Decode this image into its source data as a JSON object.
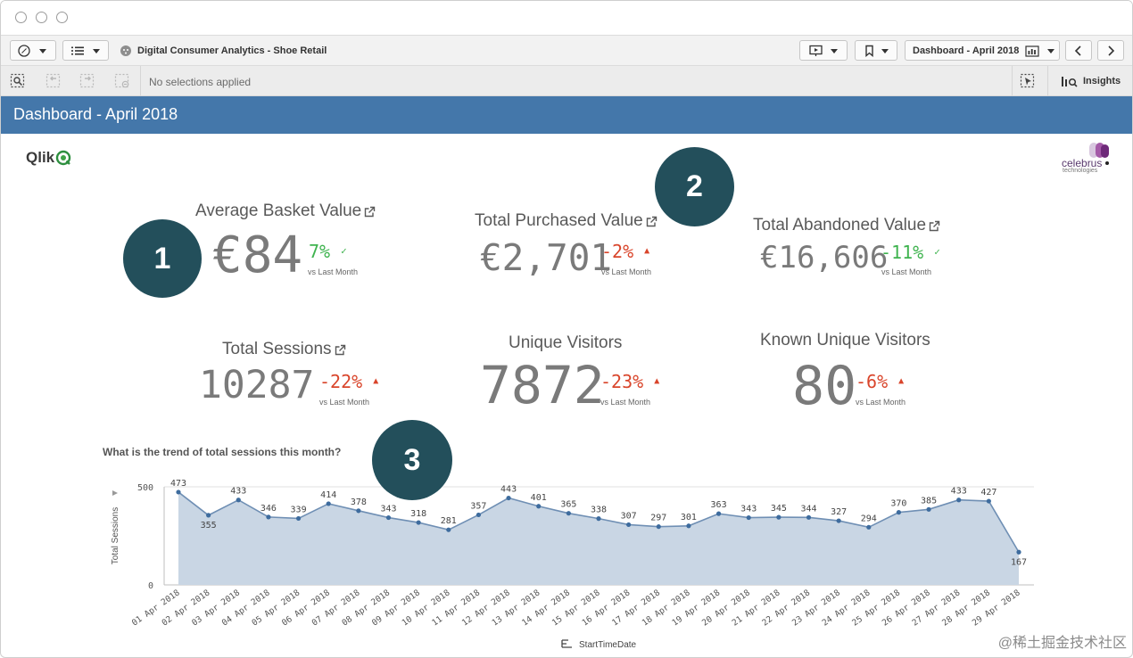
{
  "window": {
    "app_title": "Digital Consumer Analytics - Shoe Retail",
    "sheet_nav_label": "Dashboard - April 2018"
  },
  "selections": {
    "status_text": "No selections applied",
    "insights_label": "Insights"
  },
  "sheet": {
    "title": "Dashboard - April 2018"
  },
  "branding": {
    "left_logo_text": "Qlik",
    "right_logo_text": "celebrus",
    "right_logo_subtext": "technologies"
  },
  "kpis": [
    {
      "label": "Average Basket Value",
      "value": "€84",
      "change": "7%",
      "trend": "good",
      "sub": "vs Last Month"
    },
    {
      "label": "Total Purchased Value",
      "value": "€2,701",
      "change": "-2%",
      "trend": "bad",
      "sub": "vs Last Month"
    },
    {
      "label": "Total Abandoned Value",
      "value": "€16,606",
      "change": "-11%",
      "trend": "good",
      "sub": "vs Last Month"
    },
    {
      "label": "Total Sessions",
      "value": "10287",
      "change": "-22%",
      "trend": "bad",
      "sub": "vs Last Month"
    },
    {
      "label": "Unique Visitors",
      "value": "7872",
      "change": "-23%",
      "trend": "bad",
      "sub": "vs Last Month"
    },
    {
      "label": "Known Unique Visitors",
      "value": "80",
      "change": "-6%",
      "trend": "bad",
      "sub": "vs Last Month"
    }
  ],
  "annotations": [
    "1",
    "2",
    "3"
  ],
  "colors": {
    "header_blue": "#4477aa",
    "area_fill": "#c9d6e4",
    "line": "#6f8fb4",
    "good": "#3fb34f",
    "bad": "#d9452b",
    "badge": "#234f5b"
  },
  "chart_title": "What is the trend of total sessions this month?",
  "chart_data": {
    "type": "area",
    "title": "What is the trend of total sessions this month?",
    "xlabel": "StartTimeDate",
    "ylabel": "Total Sessions",
    "y_ticks": [
      "500",
      "0"
    ],
    "ylim": [
      0,
      500
    ],
    "grid": true,
    "categories": [
      "01 Apr 2018",
      "02 Apr 2018",
      "03 Apr 2018",
      "04 Apr 2018",
      "05 Apr 2018",
      "06 Apr 2018",
      "07 Apr 2018",
      "08 Apr 2018",
      "09 Apr 2018",
      "10 Apr 2018",
      "11 Apr 2018",
      "12 Apr 2018",
      "13 Apr 2018",
      "14 Apr 2018",
      "15 Apr 2018",
      "16 Apr 2018",
      "17 Apr 2018",
      "18 Apr 2018",
      "19 Apr 2018",
      "20 Apr 2018",
      "21 Apr 2018",
      "22 Apr 2018",
      "23 Apr 2018",
      "24 Apr 2018",
      "25 Apr 2018",
      "26 Apr 2018",
      "27 Apr 2018",
      "28 Apr 2018",
      "29 Apr 2018"
    ],
    "values": [
      473,
      355,
      433,
      346,
      339,
      414,
      378,
      343,
      318,
      281,
      357,
      443,
      401,
      365,
      338,
      307,
      297,
      301,
      363,
      343,
      345,
      344,
      327,
      294,
      370,
      385,
      433,
      427,
      167
    ]
  },
  "watermark": "@稀土掘金技术社区"
}
